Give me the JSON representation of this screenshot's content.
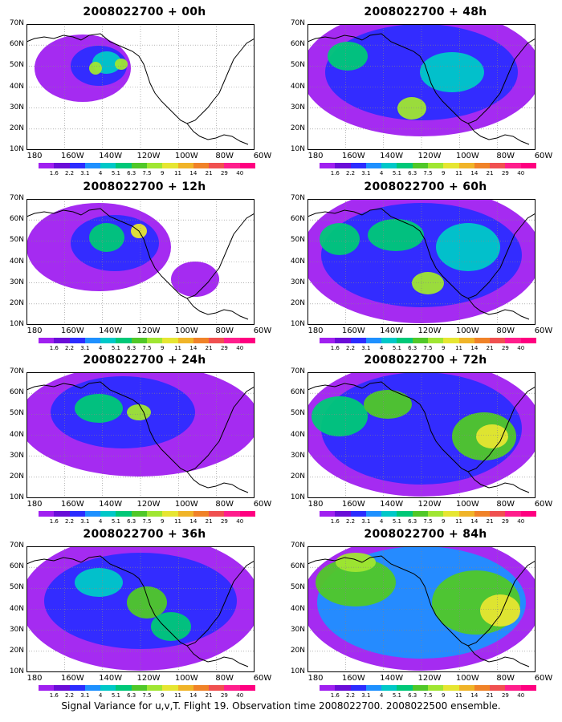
{
  "figure": {
    "footer": "Signal Variance for u,v,T. Flight 19. Observation time 2008022700. 2008022500 ensemble."
  },
  "axes": {
    "lat_labels": [
      "70N",
      "60N",
      "50N",
      "40N",
      "30N",
      "20N",
      "10N"
    ],
    "lon_labels": [
      "180",
      "160W",
      "140W",
      "120W",
      "100W",
      "80W",
      "60W"
    ]
  },
  "colorbar": {
    "labels": [
      "1.6",
      "2.2",
      "3.1",
      "4",
      "5.1",
      "6.3",
      "7.5",
      "9",
      "11",
      "14",
      "21",
      "29",
      "40"
    ],
    "colors": [
      "#a020f0",
      "#6a0dd8",
      "#2c2cff",
      "#1e90ff",
      "#00c8c8",
      "#00c878",
      "#50c828",
      "#a0e632",
      "#e6e632",
      "#f0b428",
      "#f08228",
      "#f05050",
      "#ff1e8c",
      "#ff0080"
    ]
  },
  "panels": [
    {
      "title": "2008022700 + 00h",
      "level": 0
    },
    {
      "title": "2008022700 + 12h",
      "level": 1
    },
    {
      "title": "2008022700 + 24h",
      "level": 2
    },
    {
      "title": "2008022700 + 36h",
      "level": 3
    },
    {
      "title": "2008022700 + 48h",
      "level": 4
    },
    {
      "title": "2008022700 + 60h",
      "level": 5
    },
    {
      "title": "2008022700 + 72h",
      "level": 6
    },
    {
      "title": "2008022700 + 84h",
      "level": 7
    }
  ]
}
